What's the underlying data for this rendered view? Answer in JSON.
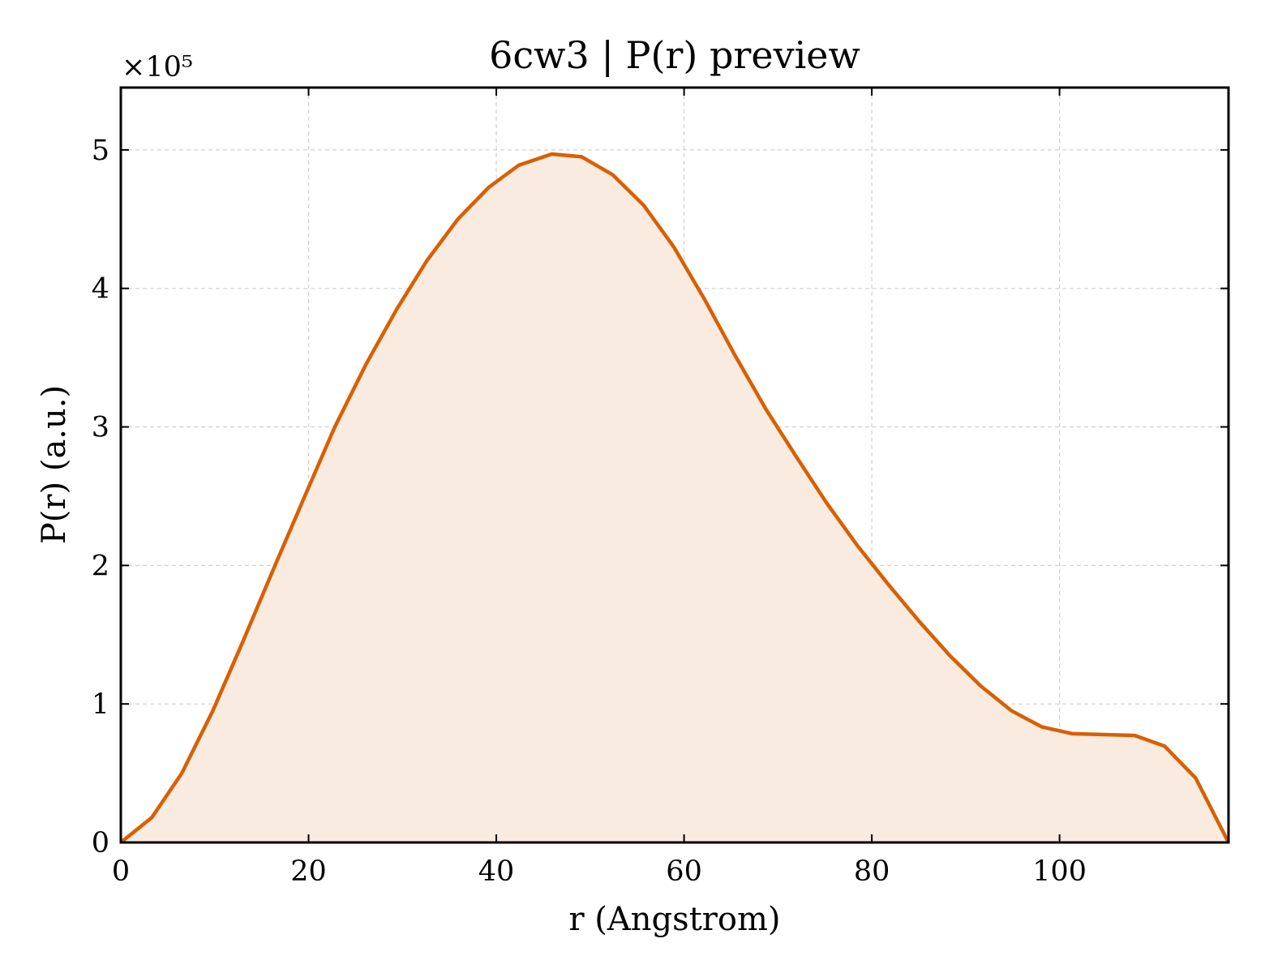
{
  "chart_data": {
    "type": "area",
    "title": "6cw3 | P(r) preview",
    "xlabel": "r (Angstrom)",
    "ylabel": "P(r) (a.u.)",
    "y_multiplier_label": "×10⁵",
    "y_scale_factor": 100000,
    "xlim": [
      0,
      118
    ],
    "ylim": [
      0,
      545000
    ],
    "x_ticks": [
      0,
      20,
      40,
      60,
      80,
      100
    ],
    "x_tick_labels": [
      "0",
      "20",
      "40",
      "60",
      "80",
      "100"
    ],
    "y_ticks": [
      0,
      100000,
      200000,
      300000,
      400000,
      500000
    ],
    "y_tick_labels": [
      "0",
      "1",
      "2",
      "3",
      "4",
      "5"
    ],
    "grid": true,
    "line_color": "#d95f02",
    "fill_color": "#f9ebdf",
    "series": [
      {
        "x": [
          0,
          3.3,
          6.5,
          9.8,
          13.0,
          16.3,
          19.6,
          22.8,
          26.1,
          29.4,
          32.6,
          35.9,
          39.2,
          42.4,
          45.9,
          49.1,
          52.4,
          55.7,
          58.9,
          62.2,
          65.4,
          68.7,
          72.0,
          75.2,
          78.5,
          81.8,
          85.0,
          88.3,
          91.6,
          94.9,
          98.1,
          101.4,
          108.0,
          111.2,
          114.5,
          118.0
        ],
        "y": [
          0,
          18000,
          50000,
          95000,
          145000,
          198000,
          250000,
          300000,
          345000,
          385000,
          420000,
          450000,
          473000,
          489000,
          497000,
          495000,
          482000,
          460000,
          430000,
          392000,
          352000,
          313000,
          278000,
          245000,
          214000,
          186000,
          160000,
          135000,
          113000,
          95000,
          83500,
          78500,
          77300,
          69500,
          46500,
          0
        ]
      }
    ]
  }
}
